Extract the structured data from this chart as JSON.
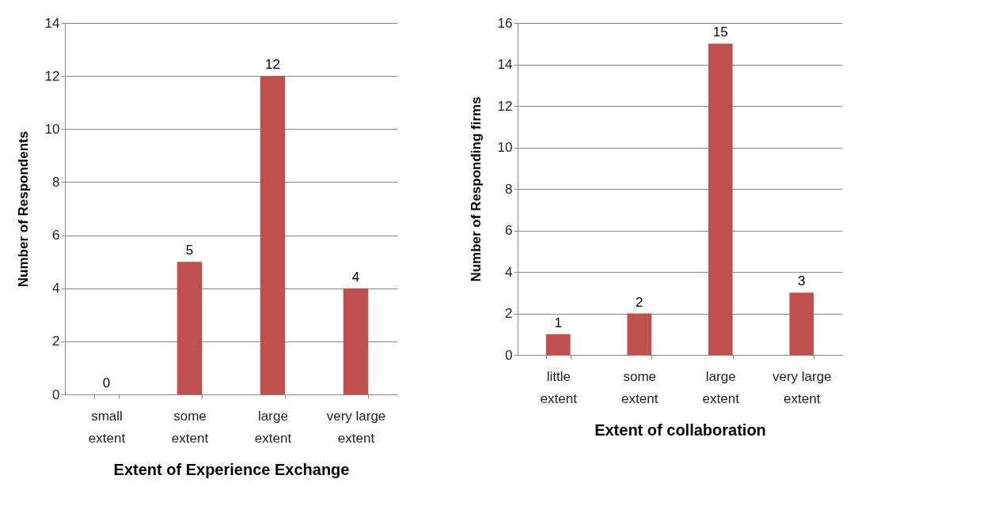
{
  "chart_data": [
    {
      "type": "bar",
      "xlabel": "Extent of Experience Exchange",
      "ylabel": "Number of Respondents",
      "categories": [
        "small extent",
        "some extent",
        "large extent",
        "very large extent"
      ],
      "values": [
        0,
        5,
        12,
        4
      ],
      "color": "#c0504d",
      "ylim": [
        0,
        14
      ],
      "yticks": [
        0,
        2,
        4,
        6,
        8,
        10,
        12,
        14
      ],
      "grid": "y",
      "data_labels": true
    },
    {
      "type": "bar",
      "xlabel": "Extent of collaboration",
      "ylabel": "Number of Responding firms",
      "categories": [
        "little extent",
        "some extent",
        "large extent",
        "very large extent"
      ],
      "values": [
        1,
        2,
        15,
        3
      ],
      "color": "#c0504d",
      "ylim": [
        0,
        16
      ],
      "yticks": [
        0,
        2,
        4,
        6,
        8,
        10,
        12,
        14,
        16
      ],
      "grid": "y",
      "data_labels": true
    }
  ]
}
